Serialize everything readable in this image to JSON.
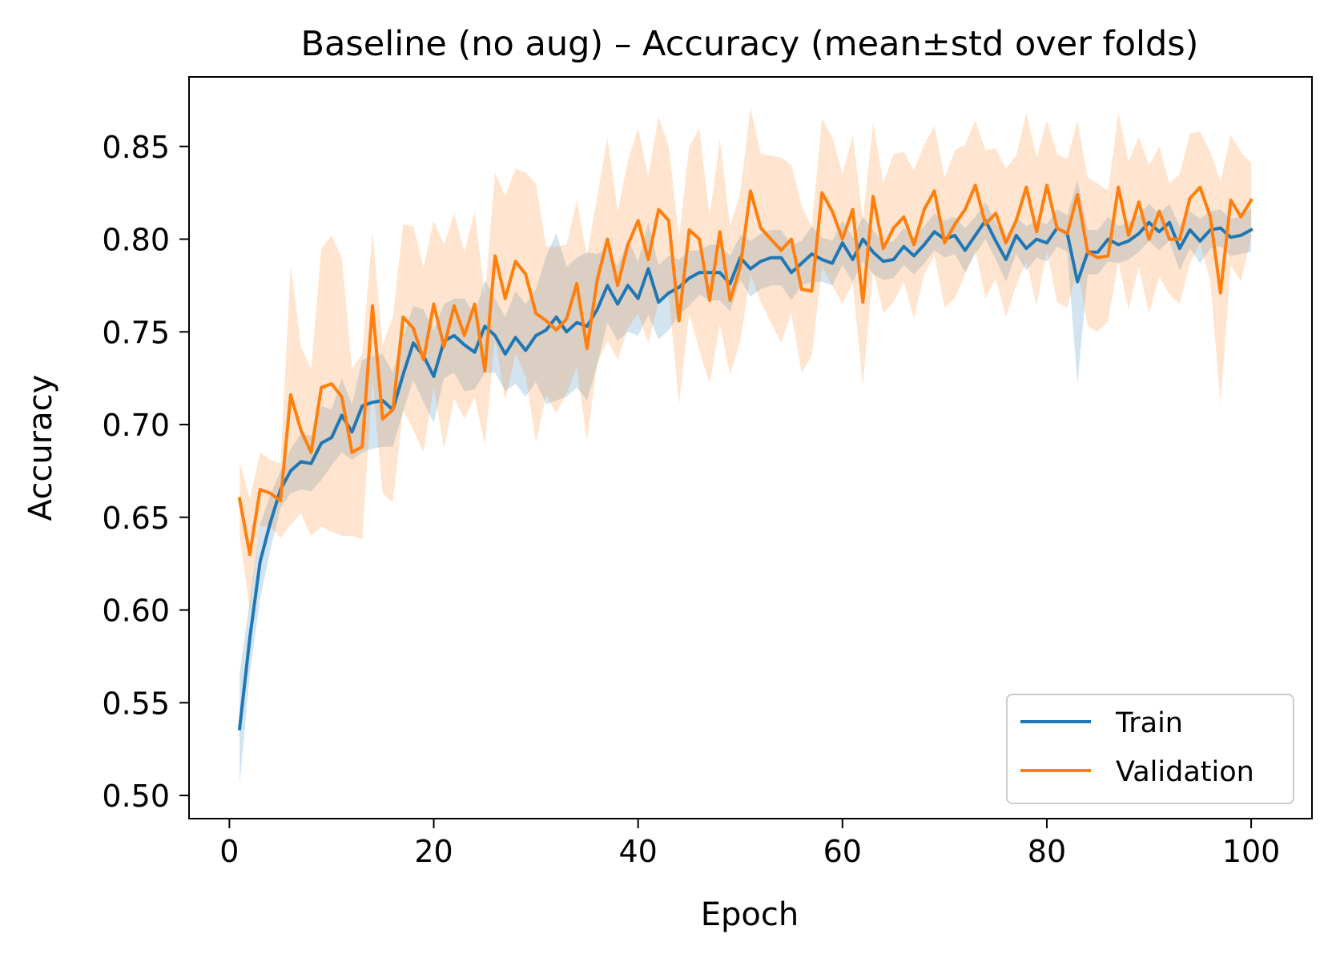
{
  "chart_data": {
    "type": "line",
    "title": "Baseline (no aug) – Accuracy (mean±std over folds)",
    "xlabel": "Epoch",
    "ylabel": "Accuracy",
    "xlim": [
      -3.95,
      105.95
    ],
    "ylim": [
      0.4875,
      0.8875
    ],
    "xticks": [
      0,
      20,
      40,
      60,
      80,
      100
    ],
    "xtick_labels": [
      "0",
      "20",
      "40",
      "60",
      "80",
      "100"
    ],
    "yticks": [
      0.5,
      0.55,
      0.6,
      0.65,
      0.7,
      0.75,
      0.8,
      0.85
    ],
    "ytick_labels": [
      "0.50",
      "0.55",
      "0.60",
      "0.65",
      "0.70",
      "0.75",
      "0.80",
      "0.85"
    ],
    "grid": false,
    "legend_position": "lower right",
    "x": [
      1,
      2,
      3,
      4,
      5,
      6,
      7,
      8,
      9,
      10,
      11,
      12,
      13,
      14,
      15,
      16,
      17,
      18,
      19,
      20,
      21,
      22,
      23,
      24,
      25,
      26,
      27,
      28,
      29,
      30,
      31,
      32,
      33,
      34,
      35,
      36,
      37,
      38,
      39,
      40,
      41,
      42,
      43,
      44,
      45,
      46,
      47,
      48,
      49,
      50,
      51,
      52,
      53,
      54,
      55,
      56,
      57,
      58,
      59,
      60,
      61,
      62,
      63,
      64,
      65,
      66,
      67,
      68,
      69,
      70,
      71,
      72,
      73,
      74,
      75,
      76,
      77,
      78,
      79,
      80,
      81,
      82,
      83,
      84,
      85,
      86,
      87,
      88,
      89,
      90,
      91,
      92,
      93,
      94,
      95,
      96,
      97,
      98,
      99,
      100
    ],
    "series": [
      {
        "name": "Train",
        "color": "#1f77b4",
        "band_opacity": 0.2,
        "mean": [
          0.536,
          0.585,
          0.626,
          0.647,
          0.665,
          0.675,
          0.68,
          0.679,
          0.69,
          0.693,
          0.705,
          0.696,
          0.71,
          0.712,
          0.713,
          0.708,
          0.727,
          0.744,
          0.737,
          0.726,
          0.745,
          0.748,
          0.743,
          0.739,
          0.753,
          0.748,
          0.738,
          0.747,
          0.74,
          0.748,
          0.751,
          0.758,
          0.75,
          0.755,
          0.753,
          0.762,
          0.775,
          0.765,
          0.775,
          0.768,
          0.784,
          0.766,
          0.771,
          0.774,
          0.779,
          0.782,
          0.782,
          0.782,
          0.776,
          0.79,
          0.784,
          0.788,
          0.79,
          0.79,
          0.782,
          0.787,
          0.792,
          0.789,
          0.787,
          0.798,
          0.789,
          0.8,
          0.793,
          0.788,
          0.789,
          0.796,
          0.791,
          0.797,
          0.804,
          0.8,
          0.802,
          0.794,
          0.802,
          0.81,
          0.799,
          0.789,
          0.802,
          0.795,
          0.8,
          0.798,
          0.806,
          0.803,
          0.777,
          0.793,
          0.793,
          0.8,
          0.797,
          0.799,
          0.803,
          0.809,
          0.804,
          0.809,
          0.795,
          0.805,
          0.799,
          0.805,
          0.806,
          0.801,
          0.802,
          0.805
        ],
        "std": [
          0.03,
          0.02,
          0.02,
          0.015,
          0.01,
          0.012,
          0.015,
          0.015,
          0.02,
          0.015,
          0.02,
          0.015,
          0.025,
          0.025,
          0.025,
          0.02,
          0.02,
          0.02,
          0.025,
          0.025,
          0.02,
          0.02,
          0.025,
          0.02,
          0.025,
          0.02,
          0.02,
          0.025,
          0.025,
          0.025,
          0.04,
          0.045,
          0.035,
          0.035,
          0.04,
          0.03,
          0.02,
          0.02,
          0.025,
          0.02,
          0.025,
          0.02,
          0.02,
          0.015,
          0.015,
          0.012,
          0.015,
          0.015,
          0.015,
          0.012,
          0.015,
          0.015,
          0.015,
          0.015,
          0.015,
          0.012,
          0.015,
          0.012,
          0.012,
          0.012,
          0.012,
          0.012,
          0.012,
          0.01,
          0.01,
          0.01,
          0.01,
          0.01,
          0.01,
          0.01,
          0.01,
          0.012,
          0.01,
          0.01,
          0.01,
          0.012,
          0.01,
          0.012,
          0.01,
          0.01,
          0.01,
          0.01,
          0.055,
          0.012,
          0.012,
          0.012,
          0.01,
          0.01,
          0.01,
          0.01,
          0.01,
          0.01,
          0.012,
          0.01,
          0.012,
          0.01,
          0.01,
          0.01,
          0.01,
          0.012
        ]
      },
      {
        "name": "Validation",
        "color": "#ff7f0e",
        "band_opacity": 0.2,
        "mean": [
          0.66,
          0.63,
          0.665,
          0.663,
          0.659,
          0.716,
          0.697,
          0.685,
          0.72,
          0.722,
          0.715,
          0.685,
          0.688,
          0.764,
          0.703,
          0.708,
          0.758,
          0.752,
          0.735,
          0.765,
          0.742,
          0.764,
          0.748,
          0.765,
          0.729,
          0.791,
          0.768,
          0.788,
          0.781,
          0.76,
          0.756,
          0.751,
          0.757,
          0.776,
          0.741,
          0.778,
          0.8,
          0.775,
          0.797,
          0.81,
          0.789,
          0.816,
          0.81,
          0.756,
          0.805,
          0.8,
          0.767,
          0.804,
          0.767,
          0.785,
          0.826,
          0.806,
          0.8,
          0.794,
          0.8,
          0.773,
          0.772,
          0.825,
          0.815,
          0.8,
          0.816,
          0.766,
          0.823,
          0.795,
          0.806,
          0.812,
          0.797,
          0.816,
          0.826,
          0.798,
          0.808,
          0.816,
          0.829,
          0.808,
          0.814,
          0.798,
          0.81,
          0.828,
          0.804,
          0.829,
          0.806,
          0.803,
          0.824,
          0.793,
          0.79,
          0.791,
          0.828,
          0.802,
          0.82,
          0.8,
          0.815,
          0.8,
          0.8,
          0.822,
          0.828,
          0.812,
          0.771,
          0.821,
          0.812,
          0.821
        ],
        "std": [
          0.02,
          0.03,
          0.02,
          0.018,
          0.02,
          0.07,
          0.045,
          0.045,
          0.075,
          0.08,
          0.075,
          0.045,
          0.05,
          0.04,
          0.04,
          0.05,
          0.05,
          0.055,
          0.05,
          0.045,
          0.055,
          0.05,
          0.045,
          0.05,
          0.04,
          0.045,
          0.055,
          0.05,
          0.055,
          0.07,
          0.04,
          0.045,
          0.04,
          0.045,
          0.05,
          0.045,
          0.055,
          0.04,
          0.045,
          0.05,
          0.045,
          0.05,
          0.04,
          0.045,
          0.045,
          0.06,
          0.045,
          0.05,
          0.04,
          0.04,
          0.045,
          0.04,
          0.045,
          0.05,
          0.04,
          0.045,
          0.035,
          0.04,
          0.04,
          0.035,
          0.04,
          0.045,
          0.04,
          0.035,
          0.04,
          0.035,
          0.04,
          0.035,
          0.035,
          0.035,
          0.04,
          0.035,
          0.035,
          0.04,
          0.035,
          0.04,
          0.035,
          0.04,
          0.04,
          0.035,
          0.04,
          0.04,
          0.04,
          0.04,
          0.04,
          0.035,
          0.04,
          0.04,
          0.035,
          0.04,
          0.035,
          0.03,
          0.035,
          0.035,
          0.03,
          0.035,
          0.06,
          0.035,
          0.035,
          0.02
        ]
      }
    ]
  }
}
